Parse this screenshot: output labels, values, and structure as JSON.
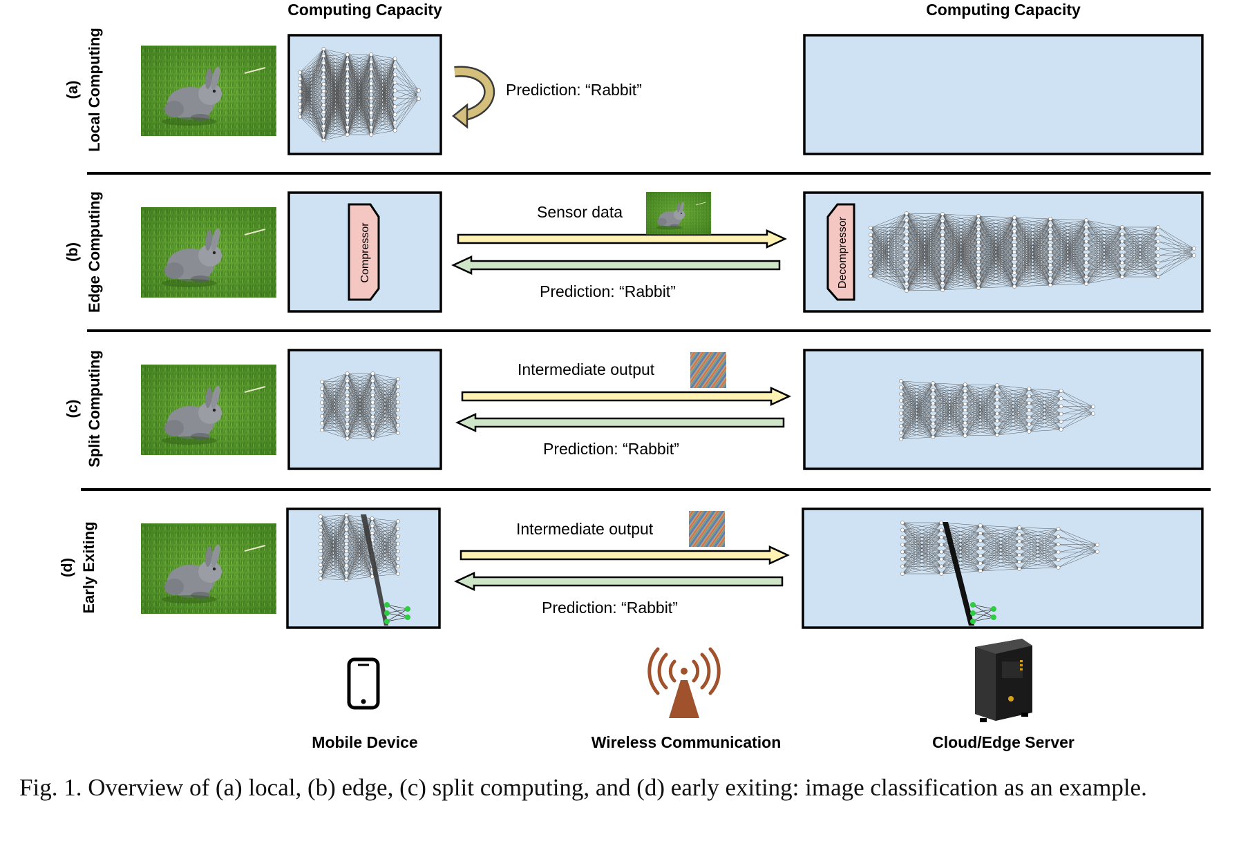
{
  "headers": {
    "left_capacity": "Computing Capacity",
    "right_capacity": "Computing Capacity"
  },
  "rows": [
    {
      "letter": "(a)",
      "name": "Local Computing",
      "label_top": "Prediction: “Rabbit”"
    },
    {
      "letter": "(b)",
      "name": "Edge Computing",
      "label_top": "Sensor data",
      "label_bottom": "Prediction: “Rabbit”",
      "compressor": "Compressor",
      "decompressor": "Decompressor"
    },
    {
      "letter": "(c)",
      "name": "Split Computing",
      "label_top": "Intermediate output",
      "label_bottom": "Prediction: “Rabbit”"
    },
    {
      "letter": "(d)",
      "name": "Early Exiting",
      "label_top": "Intermediate output",
      "label_bottom": "Prediction: “Rabbit”"
    }
  ],
  "footer": {
    "mobile": "Mobile Device",
    "wireless": "Wireless Communication",
    "server": "Cloud/Edge Server"
  },
  "caption": "Fig. 1.  Overview of (a) local, (b) edge, (c) split computing, and (d) early exiting: image classification as an example.",
  "colors": {
    "box_fill": "#cfe2f3",
    "uplink_arrow": "#fff2b3",
    "downlink_arrow": "#cfe5c7",
    "compressor_fill": "#f4c7c3",
    "exit_node": "#2ecc40",
    "antenna": "#a0522d"
  },
  "icons": [
    "rabbit-photo",
    "feature-map-thumbnail",
    "return-arrow-icon",
    "phone-icon",
    "antenna-icon",
    "server-icon"
  ]
}
